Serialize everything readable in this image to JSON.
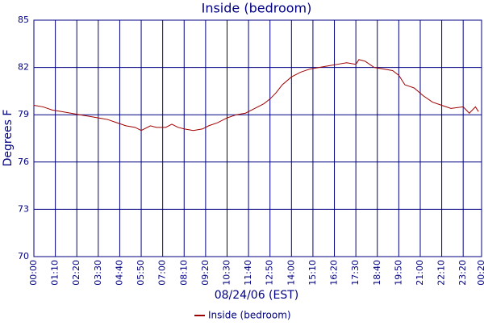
{
  "chart_data": {
    "type": "line",
    "title": "Inside (bedroom)",
    "x_label": "08/24/06 (EST)",
    "y_label": "Degrees F",
    "xlim": [
      0,
      1460
    ],
    "ylim": [
      70,
      85
    ],
    "yticks": [
      70,
      73,
      76,
      79,
      82,
      85
    ],
    "xticks": [
      {
        "value": 0,
        "label": "00:00"
      },
      {
        "value": 70,
        "label": "01:10"
      },
      {
        "value": 140,
        "label": "02:20"
      },
      {
        "value": 210,
        "label": "03:30"
      },
      {
        "value": 280,
        "label": "04:40"
      },
      {
        "value": 350,
        "label": "05:50"
      },
      {
        "value": 420,
        "label": "07:00"
      },
      {
        "value": 490,
        "label": "08:10"
      },
      {
        "value": 560,
        "label": "09:20"
      },
      {
        "value": 630,
        "label": "10:30"
      },
      {
        "value": 700,
        "label": "11:40"
      },
      {
        "value": 770,
        "label": "12:50"
      },
      {
        "value": 840,
        "label": "14:00"
      },
      {
        "value": 910,
        "label": "15:10"
      },
      {
        "value": 980,
        "label": "16:20"
      },
      {
        "value": 1050,
        "label": "17:30"
      },
      {
        "value": 1120,
        "label": "18:40"
      },
      {
        "value": 1190,
        "label": "19:50"
      },
      {
        "value": 1260,
        "label": "21:00"
      },
      {
        "value": 1330,
        "label": "22:10"
      },
      {
        "value": 1400,
        "label": "23:20"
      },
      {
        "value": 1460,
        "label": "00:20"
      }
    ],
    "grid": true,
    "x": [
      0,
      30,
      60,
      90,
      120,
      150,
      180,
      210,
      240,
      270,
      300,
      330,
      350,
      380,
      400,
      430,
      450,
      470,
      490,
      520,
      550,
      570,
      600,
      630,
      660,
      690,
      720,
      750,
      770,
      790,
      810,
      840,
      870,
      900,
      930,
      960,
      990,
      1020,
      1050,
      1060,
      1080,
      1110,
      1140,
      1170,
      1190,
      1210,
      1240,
      1270,
      1300,
      1330,
      1360,
      1400,
      1420,
      1440,
      1450
    ],
    "series": [
      {
        "name": "Inside (bedroom)",
        "color": "#a00000",
        "values": [
          79.6,
          79.5,
          79.3,
          79.2,
          79.1,
          79.0,
          78.9,
          78.8,
          78.7,
          78.5,
          78.3,
          78.2,
          78.0,
          78.3,
          78.2,
          78.2,
          78.4,
          78.2,
          78.1,
          78.0,
          78.1,
          78.3,
          78.5,
          78.8,
          79.0,
          79.1,
          79.4,
          79.7,
          80.0,
          80.4,
          80.9,
          81.4,
          81.7,
          81.9,
          82.0,
          82.1,
          82.2,
          82.3,
          82.2,
          82.5,
          82.4,
          82.0,
          81.9,
          81.8,
          81.5,
          80.9,
          80.7,
          80.2,
          79.8,
          79.6,
          79.4,
          79.5,
          79.1,
          79.5,
          79.2
        ]
      }
    ]
  }
}
